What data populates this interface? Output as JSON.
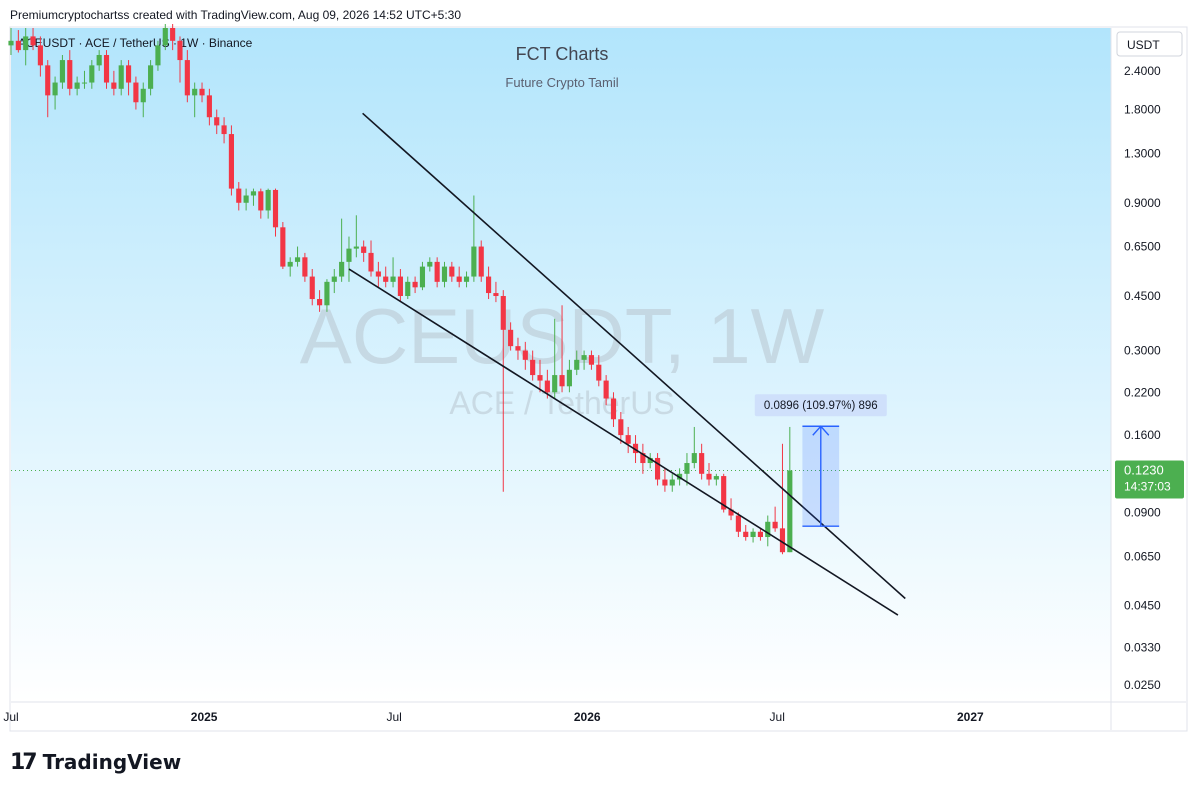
{
  "header": {
    "caption": "Premiumcryptochartss created with TradingView.com, Aug 09, 2026 14:52 UTC+5:30"
  },
  "symbol_line": "ACEUSDT · ACE / TetherUS · 1W · Binance",
  "overlay": {
    "title": "FCT Charts",
    "subtitle": "Future Crypto Tamil",
    "watermark_main": "ACEUSDT, 1W",
    "watermark_sub": "ACE / TetherUS"
  },
  "currency_badge": "USDT",
  "price_label": {
    "price": "0.1230",
    "countdown": "14:37:03"
  },
  "measure_label": "0.0896 (109.97%) 896",
  "footer": {
    "brand": "TradingView"
  },
  "colors": {
    "up": "#4caf50",
    "down": "#f23645",
    "bg_top": "#b2e5fc",
    "bg_bottom": "#ffffff",
    "last_price": "#4caf50",
    "measure": "#2962ff"
  },
  "chart_data": {
    "type": "candlestick",
    "interval": "1W",
    "scale": "log",
    "y_axis_ticks": [
      "2.4000",
      "1.8000",
      "1.3000",
      "0.9000",
      "0.6500",
      "0.4500",
      "0.3000",
      "0.2200",
      "0.1600",
      "0.0900",
      "0.0650",
      "0.0450",
      "0.0330",
      "0.0250"
    ],
    "x_axis_ticks": [
      {
        "label": "Jul",
        "date": "2024-07-01"
      },
      {
        "label": "2025",
        "date": "2025-01-01"
      },
      {
        "label": "Jul",
        "date": "2025-07-01"
      },
      {
        "label": "2026",
        "date": "2026-01-01"
      },
      {
        "label": "Jul",
        "date": "2026-07-01"
      },
      {
        "label": "2027",
        "date": "2027-01-01"
      }
    ],
    "x_range": [
      "2024-07-01",
      "2027-05-15"
    ],
    "y_range": [
      0.022,
      3.3
    ],
    "last_price": 0.123,
    "candles": [
      [
        "2024-07-01",
        2.9,
        3.3,
        2.7,
        3.0
      ],
      [
        "2024-07-08",
        3.0,
        3.25,
        2.75,
        2.8
      ],
      [
        "2024-07-15",
        2.8,
        3.3,
        2.5,
        3.1
      ],
      [
        "2024-07-22",
        3.1,
        3.3,
        2.8,
        2.9
      ],
      [
        "2024-07-29",
        2.9,
        3.1,
        2.3,
        2.5
      ],
      [
        "2024-08-05",
        2.5,
        2.6,
        1.7,
        2.0
      ],
      [
        "2024-08-12",
        2.0,
        2.3,
        1.8,
        2.2
      ],
      [
        "2024-08-19",
        2.2,
        2.7,
        2.1,
        2.6
      ],
      [
        "2024-08-26",
        2.6,
        2.8,
        2.0,
        2.1
      ],
      [
        "2024-09-02",
        2.1,
        2.3,
        2.0,
        2.2
      ],
      [
        "2024-09-09",
        2.2,
        2.4,
        2.1,
        2.2
      ],
      [
        "2024-09-16",
        2.2,
        2.6,
        2.1,
        2.5
      ],
      [
        "2024-09-23",
        2.5,
        2.8,
        2.4,
        2.7
      ],
      [
        "2024-09-30",
        2.7,
        2.8,
        2.1,
        2.2
      ],
      [
        "2024-10-07",
        2.2,
        2.4,
        2.0,
        2.1
      ],
      [
        "2024-10-14",
        2.1,
        2.6,
        2.0,
        2.5
      ],
      [
        "2024-10-21",
        2.5,
        2.6,
        2.0,
        2.2
      ],
      [
        "2024-10-28",
        2.2,
        2.3,
        1.8,
        1.9
      ],
      [
        "2024-11-04",
        1.9,
        2.2,
        1.7,
        2.1
      ],
      [
        "2024-11-11",
        2.1,
        2.6,
        2.0,
        2.5
      ],
      [
        "2024-11-18",
        2.5,
        3.0,
        2.4,
        2.9
      ],
      [
        "2024-11-25",
        2.9,
        3.4,
        2.8,
        3.3
      ],
      [
        "2024-12-02",
        3.3,
        3.4,
        2.8,
        3.0
      ],
      [
        "2024-12-09",
        3.0,
        3.1,
        2.2,
        2.6
      ],
      [
        "2024-12-16",
        2.6,
        2.8,
        1.9,
        2.0
      ],
      [
        "2024-12-23",
        2.0,
        2.2,
        1.7,
        2.1
      ],
      [
        "2024-12-30",
        2.1,
        2.2,
        1.9,
        2.0
      ],
      [
        "2025-01-06",
        2.0,
        2.1,
        1.6,
        1.7
      ],
      [
        "2025-01-13",
        1.7,
        1.8,
        1.5,
        1.6
      ],
      [
        "2025-01-20",
        1.6,
        1.7,
        1.4,
        1.5
      ],
      [
        "2025-01-27",
        1.5,
        1.6,
        0.95,
        1.0
      ],
      [
        "2025-02-03",
        1.0,
        1.05,
        0.85,
        0.9
      ],
      [
        "2025-02-10",
        0.9,
        1.0,
        0.85,
        0.95
      ],
      [
        "2025-02-17",
        0.95,
        1.0,
        0.88,
        0.98
      ],
      [
        "2025-02-24",
        0.98,
        1.0,
        0.8,
        0.85
      ],
      [
        "2025-03-03",
        0.85,
        1.0,
        0.8,
        0.99
      ],
      [
        "2025-03-10",
        0.99,
        1.0,
        0.7,
        0.75
      ],
      [
        "2025-03-17",
        0.75,
        0.78,
        0.55,
        0.56
      ],
      [
        "2025-03-24",
        0.56,
        0.6,
        0.52,
        0.58
      ],
      [
        "2025-03-31",
        0.58,
        0.65,
        0.56,
        0.6
      ],
      [
        "2025-04-07",
        0.6,
        0.62,
        0.5,
        0.52
      ],
      [
        "2025-04-14",
        0.52,
        0.55,
        0.42,
        0.44
      ],
      [
        "2025-04-21",
        0.44,
        0.47,
        0.4,
        0.42
      ],
      [
        "2025-04-28",
        0.42,
        0.51,
        0.4,
        0.5
      ],
      [
        "2025-05-05",
        0.5,
        0.55,
        0.46,
        0.52
      ],
      [
        "2025-05-12",
        0.52,
        0.8,
        0.5,
        0.58
      ],
      [
        "2025-05-19",
        0.58,
        0.7,
        0.5,
        0.64
      ],
      [
        "2025-05-26",
        0.64,
        0.82,
        0.6,
        0.65
      ],
      [
        "2025-06-02",
        0.65,
        0.68,
        0.58,
        0.62
      ],
      [
        "2025-06-09",
        0.62,
        0.68,
        0.52,
        0.54
      ],
      [
        "2025-06-16",
        0.54,
        0.58,
        0.48,
        0.52
      ],
      [
        "2025-06-23",
        0.52,
        0.56,
        0.48,
        0.5
      ],
      [
        "2025-06-30",
        0.5,
        0.6,
        0.48,
        0.52
      ],
      [
        "2025-07-07",
        0.52,
        0.55,
        0.43,
        0.45
      ],
      [
        "2025-07-14",
        0.45,
        0.52,
        0.44,
        0.5
      ],
      [
        "2025-07-21",
        0.5,
        0.52,
        0.46,
        0.48
      ],
      [
        "2025-07-28",
        0.48,
        0.58,
        0.47,
        0.56
      ],
      [
        "2025-08-04",
        0.56,
        0.6,
        0.54,
        0.58
      ],
      [
        "2025-08-11",
        0.58,
        0.6,
        0.48,
        0.5
      ],
      [
        "2025-08-18",
        0.5,
        0.58,
        0.48,
        0.56
      ],
      [
        "2025-08-25",
        0.56,
        0.58,
        0.5,
        0.52
      ],
      [
        "2025-09-01",
        0.52,
        0.56,
        0.48,
        0.5
      ],
      [
        "2025-09-08",
        0.5,
        0.54,
        0.48,
        0.52
      ],
      [
        "2025-09-15",
        0.52,
        0.95,
        0.5,
        0.65
      ],
      [
        "2025-09-22",
        0.65,
        0.68,
        0.5,
        0.52
      ],
      [
        "2025-09-29",
        0.52,
        0.56,
        0.44,
        0.46
      ],
      [
        "2025-10-06",
        0.46,
        0.5,
        0.43,
        0.45
      ],
      [
        "2025-10-13",
        0.45,
        0.47,
        0.105,
        0.35
      ],
      [
        "2025-10-20",
        0.35,
        0.37,
        0.3,
        0.31
      ],
      [
        "2025-10-27",
        0.31,
        0.33,
        0.28,
        0.3
      ],
      [
        "2025-11-03",
        0.3,
        0.32,
        0.26,
        0.28
      ],
      [
        "2025-11-10",
        0.28,
        0.3,
        0.24,
        0.25
      ],
      [
        "2025-11-17",
        0.25,
        0.28,
        0.22,
        0.24
      ],
      [
        "2025-11-24",
        0.24,
        0.26,
        0.21,
        0.22
      ],
      [
        "2025-12-01",
        0.22,
        0.38,
        0.21,
        0.25
      ],
      [
        "2025-12-08",
        0.25,
        0.42,
        0.22,
        0.23
      ],
      [
        "2025-12-15",
        0.23,
        0.28,
        0.22,
        0.26
      ],
      [
        "2025-12-22",
        0.26,
        0.3,
        0.25,
        0.28
      ],
      [
        "2025-12-29",
        0.28,
        0.3,
        0.26,
        0.29
      ],
      [
        "2026-01-05",
        0.29,
        0.3,
        0.26,
        0.27
      ],
      [
        "2026-01-12",
        0.27,
        0.29,
        0.23,
        0.24
      ],
      [
        "2026-01-19",
        0.24,
        0.25,
        0.2,
        0.21
      ],
      [
        "2026-01-26",
        0.21,
        0.22,
        0.17,
        0.18
      ],
      [
        "2026-02-02",
        0.18,
        0.19,
        0.15,
        0.16
      ],
      [
        "2026-02-09",
        0.16,
        0.17,
        0.14,
        0.15
      ],
      [
        "2026-02-16",
        0.15,
        0.16,
        0.13,
        0.14
      ],
      [
        "2026-02-23",
        0.14,
        0.15,
        0.12,
        0.13
      ],
      [
        "2026-03-02",
        0.13,
        0.14,
        0.125,
        0.135
      ],
      [
        "2026-03-09",
        0.135,
        0.14,
        0.11,
        0.115
      ],
      [
        "2026-03-16",
        0.115,
        0.125,
        0.105,
        0.11
      ],
      [
        "2026-03-23",
        0.11,
        0.12,
        0.105,
        0.115
      ],
      [
        "2026-03-30",
        0.115,
        0.125,
        0.11,
        0.12
      ],
      [
        "2026-04-06",
        0.12,
        0.14,
        0.11,
        0.13
      ],
      [
        "2026-04-13",
        0.13,
        0.17,
        0.125,
        0.14
      ],
      [
        "2026-04-20",
        0.14,
        0.15,
        0.115,
        0.12
      ],
      [
        "2026-04-27",
        0.12,
        0.13,
        0.11,
        0.115
      ],
      [
        "2026-05-04",
        0.115,
        0.12,
        0.11,
        0.118
      ],
      [
        "2026-05-11",
        0.118,
        0.12,
        0.09,
        0.092
      ],
      [
        "2026-05-18",
        0.092,
        0.1,
        0.085,
        0.088
      ],
      [
        "2026-05-25",
        0.088,
        0.09,
        0.075,
        0.078
      ],
      [
        "2026-06-01",
        0.078,
        0.082,
        0.073,
        0.075
      ],
      [
        "2026-06-08",
        0.075,
        0.08,
        0.072,
        0.078
      ],
      [
        "2026-06-15",
        0.078,
        0.08,
        0.073,
        0.075
      ],
      [
        "2026-06-22",
        0.075,
        0.088,
        0.07,
        0.084
      ],
      [
        "2026-06-29",
        0.084,
        0.094,
        0.078,
        0.08
      ],
      [
        "2026-07-06",
        0.08,
        0.15,
        0.066,
        0.067
      ],
      [
        "2026-07-13",
        0.067,
        0.17,
        0.067,
        0.123
      ]
    ]
  },
  "drawings": {
    "upper_trendline": {
      "from": [
        "2025-06-01",
        1.75
      ],
      "to": [
        "2026-10-31",
        0.0475
      ]
    },
    "lower_trendline": {
      "from": [
        "2025-05-19",
        0.55
      ],
      "to": [
        "2026-10-24",
        0.042
      ]
    },
    "measure_range": {
      "from_price": 0.0813,
      "to_price": 0.1709,
      "x_from": "2026-07-25",
      "x_to": "2026-08-29"
    }
  }
}
